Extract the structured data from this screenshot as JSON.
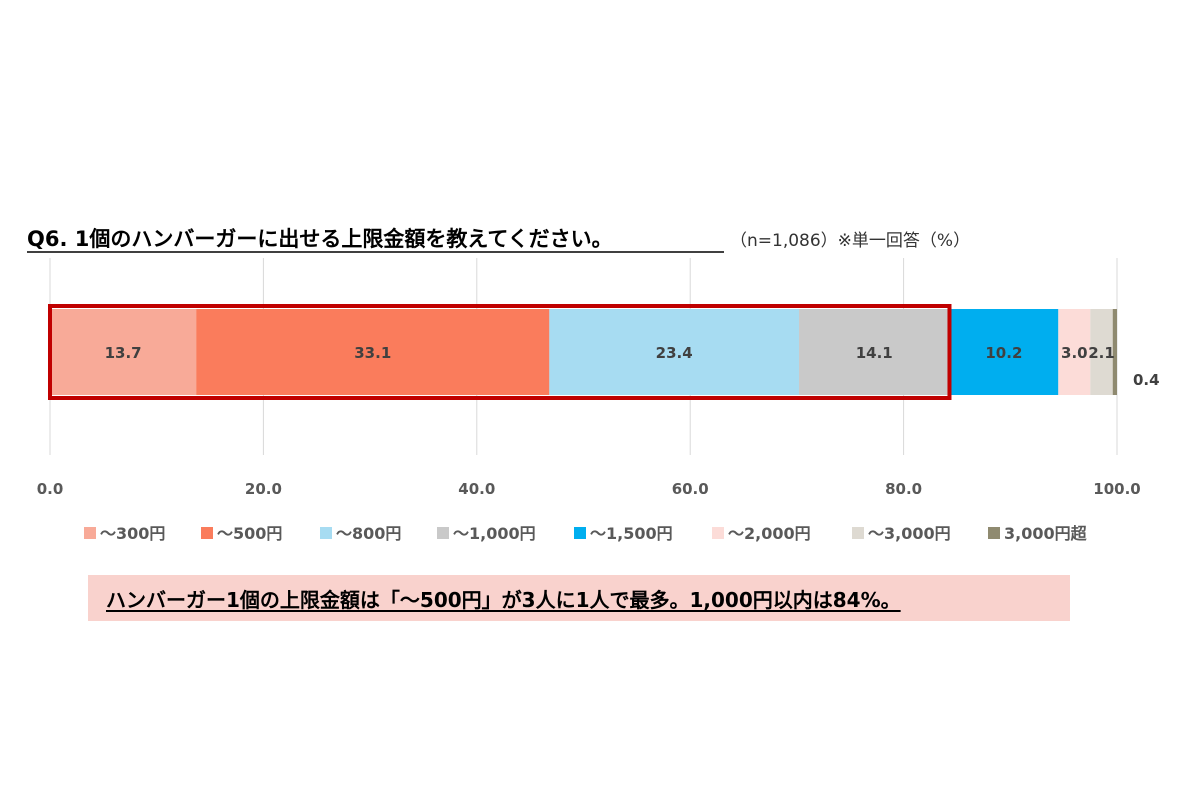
{
  "chart_data": {
    "type": "stacked-bar-horizontal",
    "title": "Q6. 1個のハンバーガーに出せる上限金額を教えてください。",
    "note": "（n=1,086）※単一回答（%）",
    "xlim": [
      0,
      100
    ],
    "ticks": [
      "0.0",
      "20.0",
      "40.0",
      "60.0",
      "80.0",
      "100.0"
    ],
    "grid": true,
    "legend_position": "bottom",
    "series": [
      {
        "name": "～300円",
        "value": 13.7,
        "label": "13.7",
        "color": "#f8aa98"
      },
      {
        "name": "～500円",
        "value": 33.1,
        "label": "33.1",
        "color": "#fa7c5c"
      },
      {
        "name": "～800円",
        "value": 23.4,
        "label": "23.4",
        "color": "#a7dcf2"
      },
      {
        "name": "～1,000円",
        "value": 14.1,
        "label": "14.1",
        "color": "#c9c9c9"
      },
      {
        "name": "～1,500円",
        "value": 10.2,
        "label": "10.2",
        "color": "#00aeef"
      },
      {
        "name": "～2,000円",
        "value": 3.0,
        "label": "3.0",
        "color": "#fcdcd8"
      },
      {
        "name": "～3,000円",
        "value": 2.1,
        "label": "2.1",
        "color": "#dedad2"
      },
      {
        "name": "3,000円超",
        "value": 0.4,
        "label": "0.4",
        "color": "#8f8a70"
      }
    ],
    "highlight": {
      "from": 0,
      "to": 84.3,
      "color": "#c00000"
    }
  },
  "summary": "ハンバーガー1個の上限金額は「～500円」が3人に1人で最多。1,000円以内は84%。"
}
